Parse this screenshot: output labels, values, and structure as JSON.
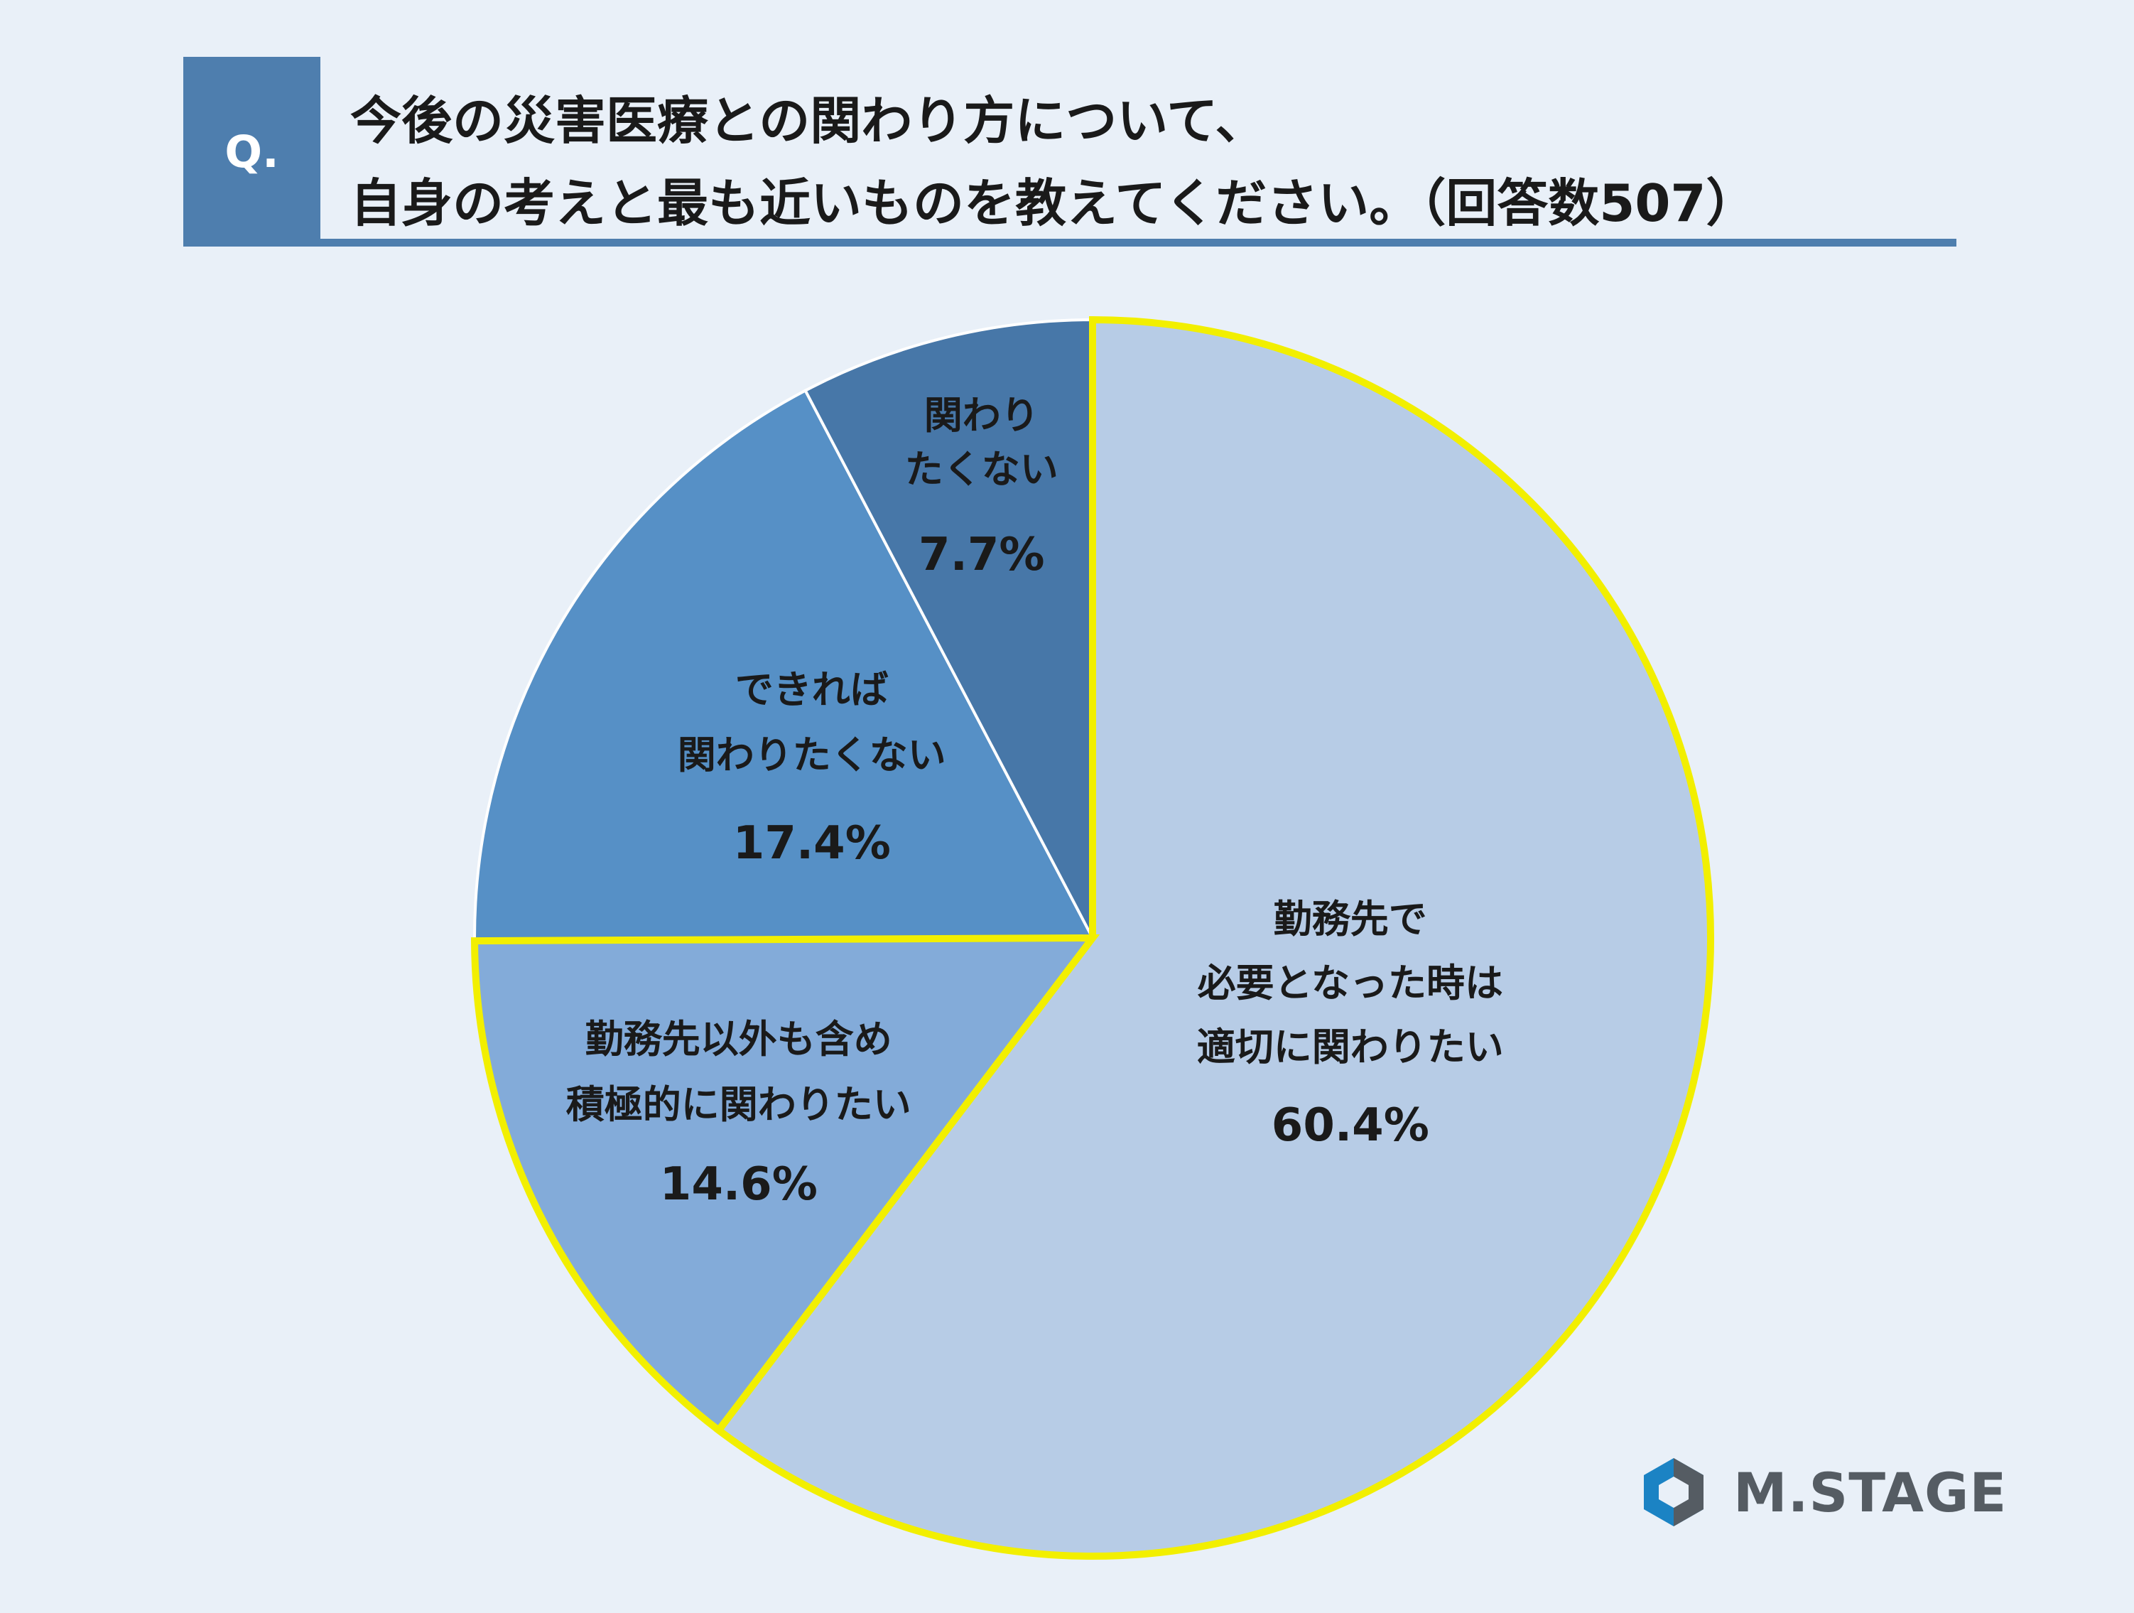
{
  "question": {
    "badge": "Q.",
    "line1": "今後の災害医療との関わり方について、",
    "line2": "自身の考えと最も近いものを教えてください。（回答数507）"
  },
  "chart_data": {
    "type": "pie",
    "title": "今後の災害医療との関わり方について、自身の考えと最も近いものを教えてください。（回答数507）",
    "slices": [
      {
        "label_lines": [
          "勤務先で",
          "必要となった時は",
          "適切に関わりたい"
        ],
        "value": 60.4,
        "value_label": "60.4%",
        "color": "#b7cce6",
        "highlight": true
      },
      {
        "label_lines": [
          "勤務先以外も含め",
          "積極的に関わりたい"
        ],
        "value": 14.6,
        "value_label": "14.6%",
        "color": "#83abd9",
        "highlight": true
      },
      {
        "label_lines": [
          "できれば",
          "関わりたくない"
        ],
        "value": 17.4,
        "value_label": "17.4%",
        "color": "#5690c6",
        "highlight": false
      },
      {
        "label_lines": [
          "関わり",
          "たくない"
        ],
        "value": 7.7,
        "value_label": "7.7%",
        "color": "#4777a8",
        "highlight": false
      }
    ],
    "start_angle": "12 o'clock",
    "direction": "clockwise",
    "highlight_color": "#f2ef00",
    "legend": "none"
  },
  "brand": {
    "name": "M.STAGE",
    "logo_icon": "hexagon-logo-icon",
    "colors": {
      "primary": "#1b83c4",
      "dark": "#555c63"
    }
  }
}
